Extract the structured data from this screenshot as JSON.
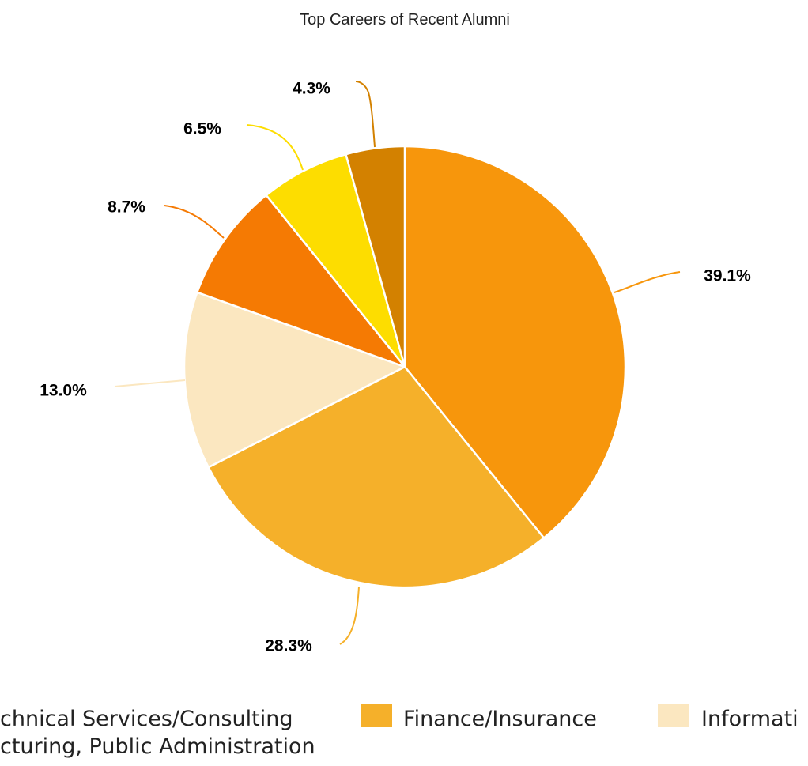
{
  "chart_data": {
    "type": "pie",
    "title": "Top Careers of Recent Alumni",
    "slices": [
      {
        "value": 39.1,
        "label": "39.1%",
        "color": "#F7960C"
      },
      {
        "value": 28.3,
        "label": "28.3%",
        "color": "#F5B02A"
      },
      {
        "value": 13.0,
        "label": "13.0%",
        "color": "#FBE7C0"
      },
      {
        "value": 8.7,
        "label": "8.7%",
        "color": "#F57A03"
      },
      {
        "value": 6.5,
        "label": "6.5%",
        "color": "#FDDD00"
      },
      {
        "value": 4.3,
        "label": "4.3%",
        "color": "#D38100"
      }
    ],
    "legend": {
      "position": "bottom",
      "items": [
        {
          "text_lines": [
            "chnical Services/Consulting",
            "cturing, Public Administration"
          ]
        },
        {
          "text_lines": [
            "Finance/Insurance"
          ],
          "color": "#F5B02A"
        },
        {
          "text_lines": [
            "Informati"
          ],
          "color": "#FBE7C0"
        }
      ]
    }
  }
}
